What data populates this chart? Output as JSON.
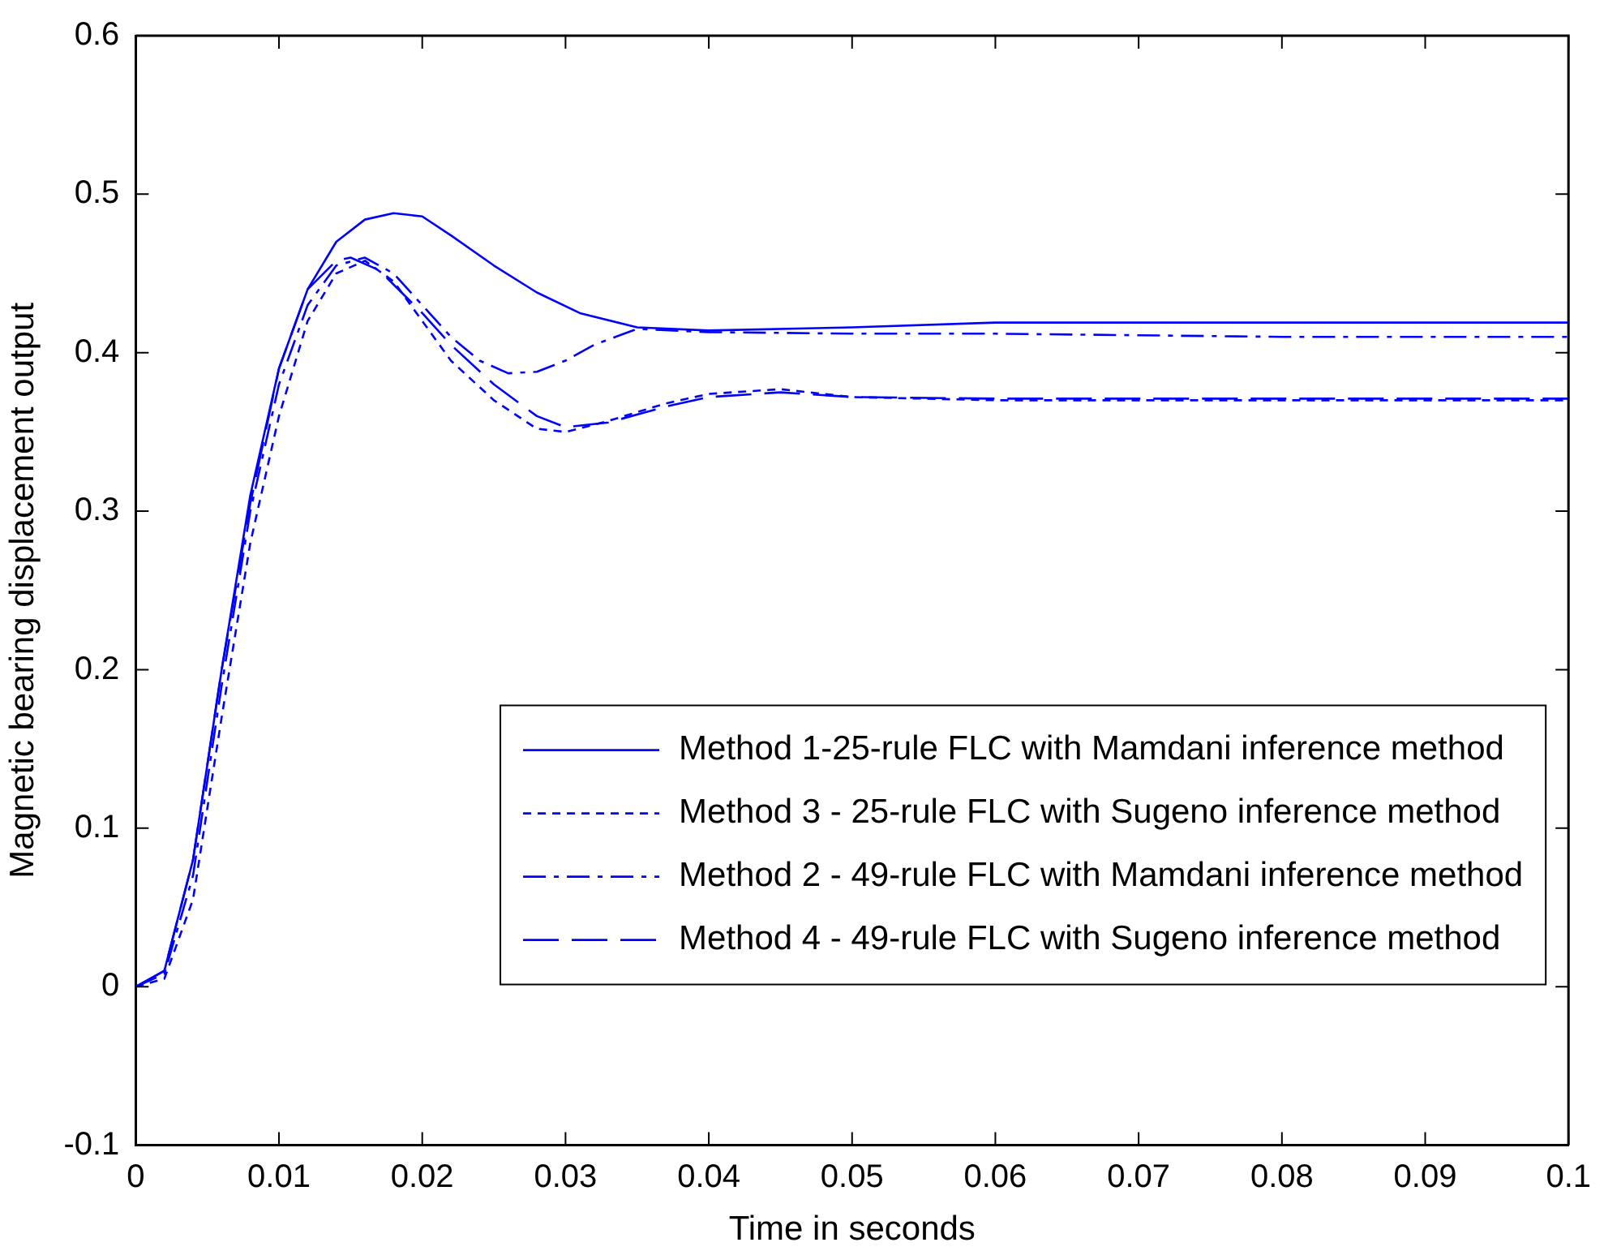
{
  "chart_data": {
    "type": "line",
    "xlabel": "Time in seconds",
    "ylabel": "Magnetic bearing displacement output",
    "xlim": [
      0,
      0.1
    ],
    "xticks": [
      0,
      0.01,
      0.02,
      0.03,
      0.04,
      0.05,
      0.06,
      0.07,
      0.08,
      0.09,
      0.1
    ],
    "ylim": [
      -0.1,
      0.6
    ],
    "yticks": [
      -0.1,
      0,
      0.1,
      0.2,
      0.3,
      0.4,
      0.5,
      0.6
    ],
    "grid": false,
    "legend": "bottom right",
    "marker": "none",
    "series": [
      {
        "name": "Method 1-25-rule FLC with Mamdani inference method",
        "color": "#0000ff",
        "line_style": "solid",
        "x": [
          0,
          0.002,
          0.004,
          0.006,
          0.008,
          0.01,
          0.012,
          0.014,
          0.016,
          0.018,
          0.02,
          0.022,
          0.025,
          0.028,
          0.031,
          0.035,
          0.04,
          0.05,
          0.06,
          0.07,
          0.08,
          0.1
        ],
        "values": [
          0,
          0.01,
          0.08,
          0.2,
          0.31,
          0.39,
          0.44,
          0.47,
          0.484,
          0.488,
          0.486,
          0.474,
          0.455,
          0.438,
          0.425,
          0.416,
          0.414,
          0.416,
          0.419,
          0.419,
          0.419,
          0.419
        ]
      },
      {
        "name": "Method 3 - 25-rule FLC with Sugeno inference method",
        "color": "#0000ff",
        "line_style": "dotted",
        "x": [
          0,
          0.002,
          0.004,
          0.006,
          0.008,
          0.01,
          0.012,
          0.014,
          0.016,
          0.018,
          0.02,
          0.022,
          0.025,
          0.028,
          0.03,
          0.033,
          0.037,
          0.04,
          0.045,
          0.05,
          0.06,
          0.1
        ],
        "values": [
          0,
          0.005,
          0.055,
          0.17,
          0.28,
          0.36,
          0.42,
          0.45,
          0.458,
          0.445,
          0.42,
          0.395,
          0.37,
          0.352,
          0.35,
          0.357,
          0.368,
          0.374,
          0.377,
          0.372,
          0.37,
          0.37
        ]
      },
      {
        "name": "Method 2 - 49-rule FLC with Mamdani inference method",
        "color": "#0000ff",
        "line_style": "dashdot",
        "x": [
          0,
          0.002,
          0.004,
          0.006,
          0.008,
          0.01,
          0.012,
          0.014,
          0.016,
          0.018,
          0.02,
          0.022,
          0.024,
          0.026,
          0.028,
          0.03,
          0.032,
          0.035,
          0.04,
          0.05,
          0.06,
          0.08,
          0.1
        ],
        "values": [
          0,
          0.008,
          0.07,
          0.19,
          0.3,
          0.38,
          0.43,
          0.455,
          0.46,
          0.45,
          0.43,
          0.41,
          0.395,
          0.387,
          0.388,
          0.395,
          0.405,
          0.415,
          0.413,
          0.412,
          0.412,
          0.41,
          0.41
        ]
      },
      {
        "name": "Method 4 - 49-rule FLC with Sugeno inference method",
        "color": "#0000ff",
        "line_style": "dashed",
        "x": [
          0,
          0.002,
          0.004,
          0.006,
          0.008,
          0.01,
          0.012,
          0.014,
          0.015,
          0.017,
          0.02,
          0.022,
          0.025,
          0.028,
          0.03,
          0.033,
          0.037,
          0.04,
          0.045,
          0.05,
          0.06,
          0.1
        ],
        "values": [
          0,
          0.01,
          0.08,
          0.2,
          0.305,
          0.39,
          0.44,
          0.458,
          0.46,
          0.452,
          0.425,
          0.405,
          0.38,
          0.36,
          0.353,
          0.356,
          0.366,
          0.372,
          0.375,
          0.372,
          0.371,
          0.371
        ]
      }
    ]
  }
}
